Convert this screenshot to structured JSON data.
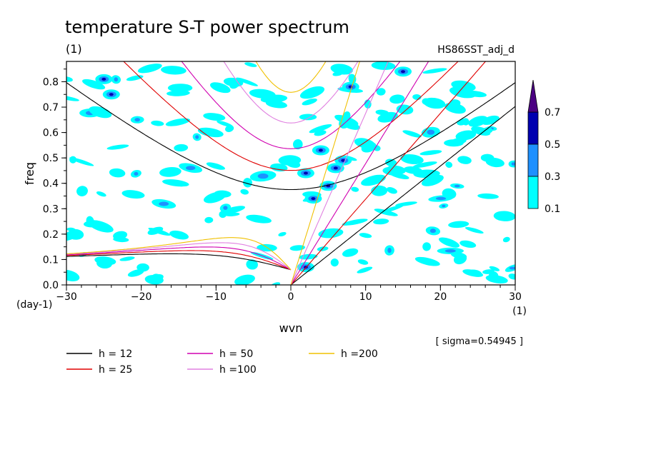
{
  "chart_data": {
    "type": "heatmap",
    "title": "temperature S-T power spectrum",
    "subtitle_left": "(1)",
    "subtitle_right": "HS86SST_adj_d",
    "xlabel": "wvn",
    "ylabel": "freq",
    "x_unit": "(1)",
    "y_unit": "(day-1)",
    "xlim": [
      -30,
      30
    ],
    "ylim": [
      0,
      0.88
    ],
    "xticks": [
      "−30",
      "−20",
      "−10",
      "0",
      "10",
      "20",
      "30"
    ],
    "xtick_values": [
      -30,
      -20,
      -10,
      0,
      10,
      20,
      30
    ],
    "yticks": [
      "0.0",
      "0.1",
      "0.2",
      "0.3",
      "0.4",
      "0.5",
      "0.6",
      "0.7",
      "0.8"
    ],
    "ytick_values": [
      0,
      0.1,
      0.2,
      0.3,
      0.4,
      0.5,
      0.6,
      0.7,
      0.8
    ],
    "sigma_note": "[ sigma=0.54945 ]",
    "colorbar": {
      "levels": [
        0.1,
        0.3,
        0.5,
        0.7
      ],
      "labels": [
        "0.1",
        "0.3",
        "0.5",
        "0.7"
      ],
      "colors": [
        "#00ffff",
        "#1e90ff",
        "#0000b0",
        "#4b0082"
      ]
    },
    "dispersion_curves": [
      {
        "label": "h = 12",
        "h": 12,
        "color": "#000000"
      },
      {
        "label": "h = 25",
        "h": 25,
        "color": "#e00000"
      },
      {
        "label": "h = 50",
        "h": 50,
        "color": "#d000b0"
      },
      {
        "label": "h =100",
        "h": 100,
        "color": "#e080e0"
      },
      {
        "label": "h =200",
        "h": 200,
        "color": "#f0c000"
      }
    ],
    "field": "power spectrum density contours (0.1–0.7+), mostly scattered cyan patches with blue/dark-blue maxima near wvn 2–8, freq 0.35–0.55"
  }
}
